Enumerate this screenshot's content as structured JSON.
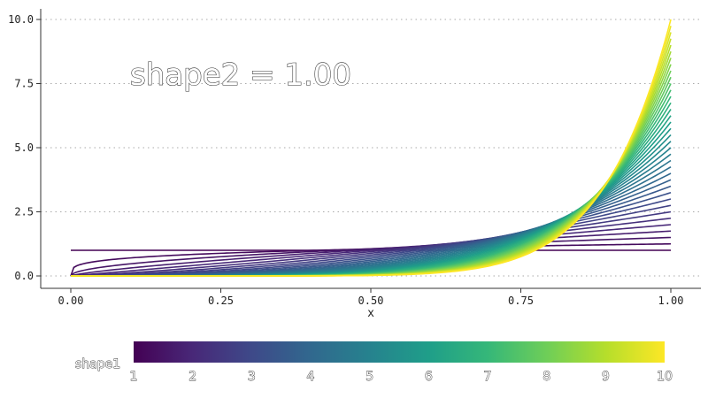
{
  "chart_data": {
    "type": "line",
    "annotation": "shape2 = 1.00",
    "xlabel": "x",
    "ylabel": "",
    "xlim": [
      0,
      1
    ],
    "ylim": [
      0,
      10
    ],
    "x_ticks": [
      "0.00",
      "0.25",
      "0.50",
      "0.75",
      "1.00"
    ],
    "y_ticks": [
      "0.0",
      "2.5",
      "5.0",
      "7.5",
      "10.0"
    ],
    "grid": "horizontal dotted",
    "series_family": {
      "distribution": "beta density",
      "shape2": 1.0,
      "shape1_values": [
        1.0,
        1.25,
        1.5,
        1.75,
        2.0,
        2.25,
        2.5,
        2.75,
        3.0,
        3.25,
        3.5,
        3.75,
        4.0,
        4.25,
        4.5,
        4.75,
        5.0,
        5.25,
        5.5,
        5.75,
        6.0,
        6.25,
        6.5,
        6.75,
        7.0,
        7.25,
        7.5,
        7.75,
        8.0,
        8.25,
        8.5,
        8.75,
        9.0,
        9.25,
        9.5,
        9.75,
        10.0
      ]
    },
    "legend": {
      "title": "shape1",
      "placement": "bottom",
      "type": "colorbar",
      "labels": [
        "1",
        "2",
        "3",
        "4",
        "5",
        "6",
        "7",
        "8",
        "9",
        "10"
      ],
      "colors": [
        "#440154",
        "#482878",
        "#3e4989",
        "#31688e",
        "#26828e",
        "#1f9e89",
        "#35b779",
        "#6ece58",
        "#b5de2b",
        "#fde725"
      ]
    }
  }
}
